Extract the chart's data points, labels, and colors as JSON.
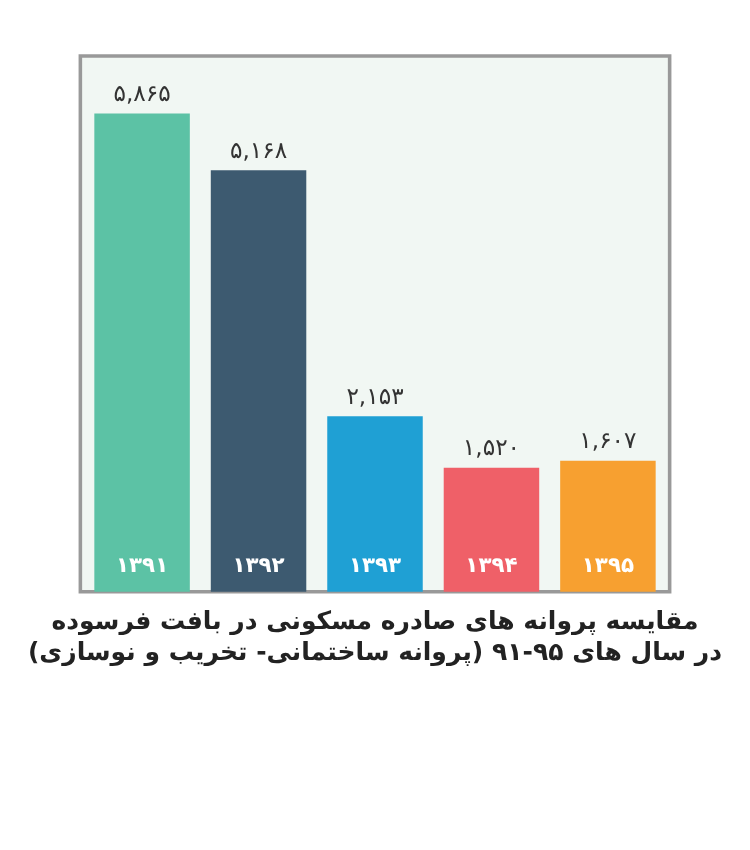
{
  "chart_data": {
    "type": "bar",
    "title": "مقایسه پروانه های صادره مسکونی در بافت فرسوده",
    "subtitle": "(پروانه ساختمانی- تخریب و نوسازی) در سال های ۹۵-۹۱",
    "categories": [
      "۱۳۹۱",
      "۱۳۹۲",
      "۱۳۹۳",
      "۱۳۹۴",
      "۱۳۹۵"
    ],
    "values": [
      5865,
      5168,
      2153,
      1520,
      1607
    ],
    "value_labels": [
      "۵,۸۶۵",
      "۵,۱۶۸",
      "۲,۱۵۳",
      "۱,۵۲۰",
      "۱,۶۰۷"
    ],
    "colors": [
      "#5cc2a5",
      "#3d5a70",
      "#1fa0d4",
      "#ef6068",
      "#f7a030"
    ]
  }
}
